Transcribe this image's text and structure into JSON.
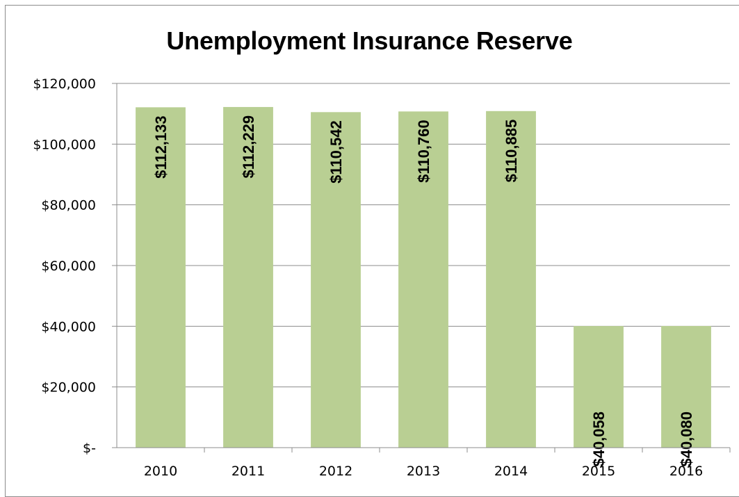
{
  "chart_data": {
    "type": "bar",
    "title": "Unemployment Insurance Reserve",
    "xlabel": "",
    "ylabel": "",
    "categories": [
      "2010",
      "2011",
      "2012",
      "2013",
      "2014",
      "2015",
      "2016"
    ],
    "values": [
      112133,
      112229,
      110542,
      110760,
      110885,
      40058,
      40080
    ],
    "data_labels": [
      "$112,133",
      "$112,229",
      "$110,542",
      "$110,760",
      "$110,885",
      "$40,058",
      "$40,080"
    ],
    "y_tick_labels": [
      "$-",
      "$20,000",
      "$40,000",
      "$60,000",
      "$80,000",
      "$100,000",
      "$120,000"
    ],
    "y_ticks": [
      0,
      20000,
      40000,
      60000,
      80000,
      100000,
      120000
    ],
    "ylim": [
      0,
      120000
    ],
    "grid": true,
    "legend": "none",
    "bar_color": "#b9cf93"
  }
}
